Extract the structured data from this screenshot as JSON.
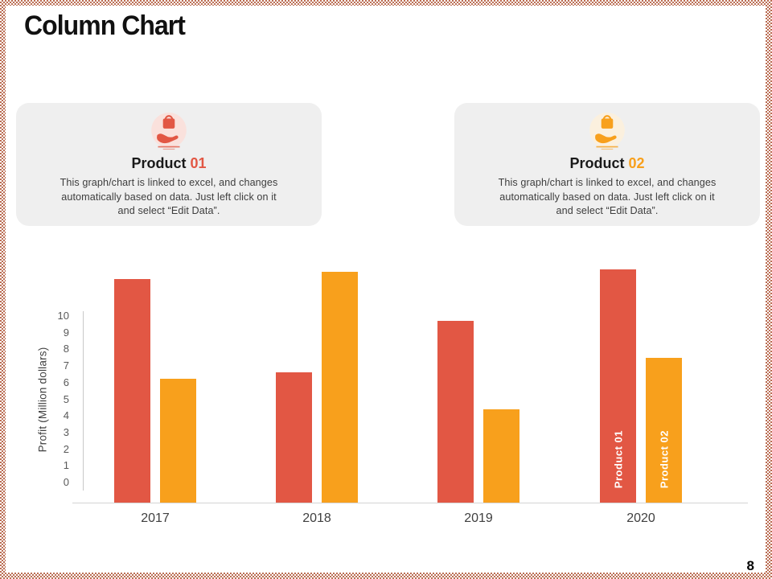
{
  "slide": {
    "title": "Column Chart",
    "page_number": "8"
  },
  "decor": {
    "border_color": "#BB6E54",
    "underline_colors": [
      "#B65750",
      "#C9704E",
      "#D38B41",
      "#DFA23F"
    ]
  },
  "cards": [
    {
      "title_text": "Product",
      "title_number": "01",
      "accent": "#E25744",
      "icon": "hand-holding-bag-icon",
      "icon_bg": "#FAE1DC",
      "description": "This graph/chart is linked to excel, and changes automatically based on data. Just left click on it and select “Edit Data”."
    },
    {
      "title_text": "Product",
      "title_number": "02",
      "accent": "#F8A01C",
      "icon": "hand-holding-bag-icon",
      "icon_bg": "#FBF0DE",
      "description": "This graph/chart is linked to excel, and changes automatically based on data. Just left click on it and select “Edit Data”."
    }
  ],
  "chart_data": {
    "type": "bar",
    "title": "",
    "categories": [
      "2017",
      "2018",
      "2019",
      "2020"
    ],
    "series": [
      {
        "name": "Product 01",
        "color": "#E25744",
        "values": [
          9.6,
          5.6,
          7.8,
          10.0
        ],
        "in_bar_label": "Product 01"
      },
      {
        "name": "Product 02",
        "color": "#F8A01C",
        "values": [
          5.3,
          9.9,
          4.0,
          6.2
        ],
        "in_bar_label": "Product 02"
      }
    ],
    "xlabel": "",
    "ylabel": "Profit  (Million dollars)",
    "yticks": [
      "0",
      "1",
      "2",
      "3",
      "4",
      "5",
      "6",
      "7",
      "8",
      "9",
      "10"
    ],
    "ylim": [
      0,
      10
    ],
    "grid": false,
    "legend_position": "labels-inside-last-category-bars"
  }
}
